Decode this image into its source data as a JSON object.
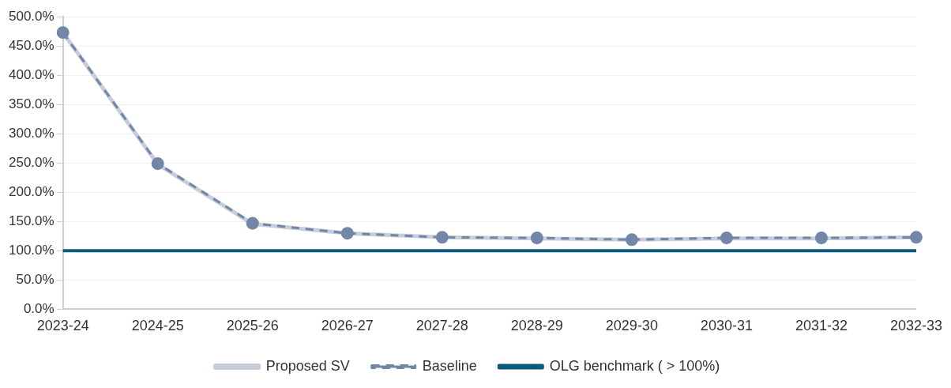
{
  "chart_data": {
    "type": "line",
    "categories": [
      "2023-24",
      "2024-25",
      "2025-26",
      "2026-27",
      "2027-28",
      "2028-29",
      "2029-30",
      "2030-31",
      "2031-32",
      "2032-33"
    ],
    "series": [
      {
        "name": "Proposed SV",
        "color": "#c8ced9",
        "marker": "diamond",
        "line_style": "solid",
        "values": [
          473,
          248,
          146,
          130,
          123,
          121,
          119,
          121,
          121,
          123
        ]
      },
      {
        "name": "Baseline",
        "color": "#7286a8",
        "marker": "circle",
        "line_style": "dashed",
        "values": [
          473,
          249,
          147,
          130,
          123,
          122,
          119,
          122,
          122,
          123
        ]
      },
      {
        "name": "OLG benchmark ( > 100%)",
        "color": "#0e5a7a",
        "marker": "none",
        "line_style": "solid",
        "values": [
          100,
          100,
          100,
          100,
          100,
          100,
          100,
          100,
          100,
          100
        ]
      }
    ],
    "ylim": [
      0,
      500
    ],
    "yticks": [
      {
        "value": 0,
        "label": "0.0%"
      },
      {
        "value": 50,
        "label": "50.0%"
      },
      {
        "value": 100,
        "label": "100.0%"
      },
      {
        "value": 150,
        "label": "150.0%"
      },
      {
        "value": 200,
        "label": "200.0%"
      },
      {
        "value": 250,
        "label": "250.0%"
      },
      {
        "value": 300,
        "label": "300.0%"
      },
      {
        "value": 350,
        "label": "350.0%"
      },
      {
        "value": 400,
        "label": "400.0%"
      },
      {
        "value": 450,
        "label": "450.0%"
      },
      {
        "value": 500,
        "label": "500.0%"
      }
    ],
    "grid": "y",
    "legend": "bottom"
  }
}
